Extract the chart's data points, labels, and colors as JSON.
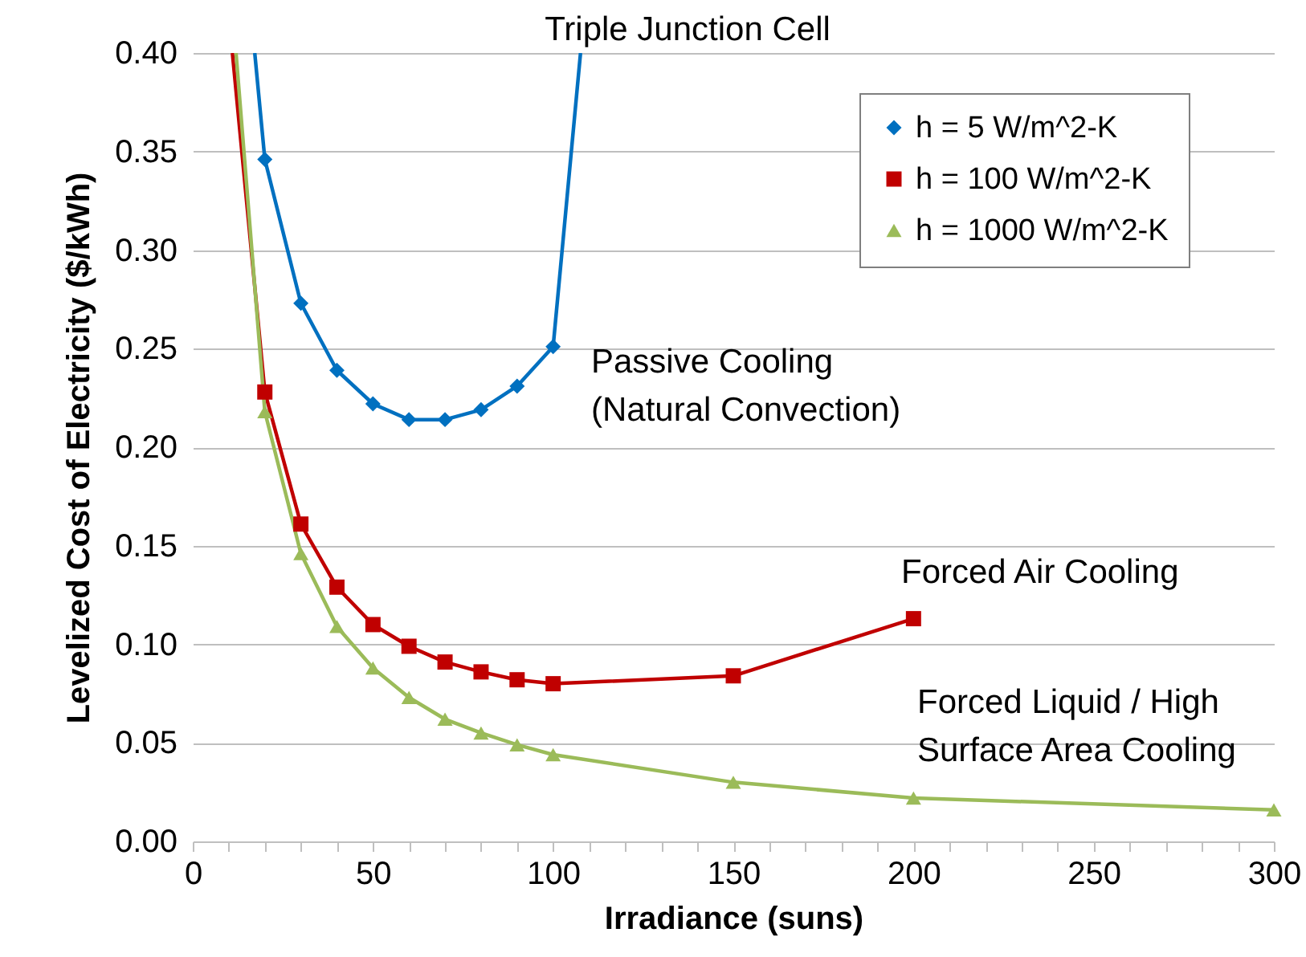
{
  "chart_data": {
    "type": "line",
    "xlabel": "Irradiance (suns)",
    "ylabel": "Levelized Cost of Electricity ($/kWh)",
    "xlim": [
      0,
      300
    ],
    "ylim": [
      0,
      0.4
    ],
    "xticks": [
      0,
      {
        "value": 10,
        "label": null
      },
      {
        "value": 20,
        "label": null
      },
      {
        "value": 30,
        "label": null
      },
      {
        "value": 40,
        "label": null
      },
      50,
      {
        "value": 60,
        "label": null
      },
      {
        "value": 70,
        "label": null
      },
      {
        "value": 80,
        "label": null
      },
      {
        "value": 90,
        "label": null
      },
      100,
      {
        "value": 110,
        "label": null
      },
      {
        "value": 120,
        "label": null
      },
      {
        "value": 130,
        "label": null
      },
      {
        "value": 140,
        "label": null
      },
      150,
      {
        "value": 160,
        "label": null
      },
      {
        "value": 170,
        "label": null
      },
      {
        "value": 180,
        "label": null
      },
      {
        "value": 190,
        "label": null
      },
      200,
      {
        "value": 210,
        "label": null
      },
      {
        "value": 220,
        "label": null
      },
      {
        "value": 230,
        "label": null
      },
      {
        "value": 240,
        "label": null
      },
      250,
      {
        "value": 260,
        "label": null
      },
      {
        "value": 270,
        "label": null
      },
      {
        "value": 280,
        "label": null
      },
      {
        "value": 290,
        "label": null
      },
      300
    ],
    "yticks": [
      {
        "value": 0,
        "label": "0.00"
      },
      {
        "value": 0.05,
        "label": "0.05"
      },
      {
        "value": 0.1,
        "label": "0.10"
      },
      {
        "value": 0.15,
        "label": "0.15"
      },
      {
        "value": 0.2,
        "label": "0.20"
      },
      {
        "value": 0.25,
        "label": "0.25"
      },
      {
        "value": 0.3,
        "label": "0.30"
      },
      {
        "value": 0.35,
        "label": "0.35"
      },
      {
        "value": 0.4,
        "label": "0.40"
      }
    ],
    "grid": "y",
    "legend": "top right",
    "line_style": "solid",
    "series": [
      {
        "name": "h = 5 W/m^2-K",
        "color": "#0070c0",
        "marker": "diamond",
        "x": [
          17.2,
          20,
          30,
          40,
          50,
          60,
          70,
          80,
          90,
          100,
          107.6
        ],
        "values": [
          0.4,
          0.346,
          0.273,
          0.239,
          0.222,
          0.214,
          0.214,
          0.219,
          0.231,
          0.251,
          0.4
        ]
      },
      {
        "name": "h = 100 W/m^2-K",
        "color": "#c00000",
        "marker": "square",
        "x": [
          11,
          20,
          30,
          40,
          50,
          60,
          70,
          80,
          90,
          100,
          150,
          200
        ],
        "values": [
          0.4,
          0.228,
          0.161,
          0.129,
          0.11,
          0.099,
          0.091,
          0.086,
          0.082,
          0.08,
          0.084,
          0.113
        ]
      },
      {
        "name": "h = 1000 W/m^2-K",
        "color": "#9bbb59",
        "marker": "triangle",
        "x": [
          12,
          20,
          30,
          40,
          50,
          60,
          70,
          80,
          90,
          100,
          150,
          200,
          300
        ],
        "values": [
          0.4,
          0.218,
          0.146,
          0.109,
          0.088,
          0.073,
          0.062,
          0.055,
          0.049,
          0.044,
          0.03,
          0.022,
          0.016
        ]
      }
    ],
    "annotations": [
      "Triple Junction Cell",
      "Passive Cooling\n(Natural Convection)",
      "Forced Air Cooling",
      "Forced Liquid / High\nSurface Area Cooling"
    ]
  }
}
